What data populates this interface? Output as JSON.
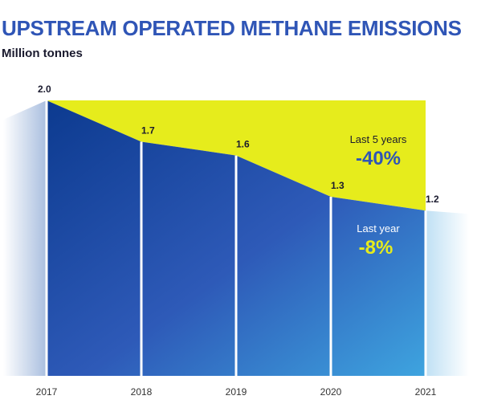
{
  "title": "UPSTREAM OPERATED METHANE EMISSIONS",
  "subtitle": "Million tonnes",
  "colors": {
    "title": "#2f55b6",
    "highlight": "#e6ec1c",
    "area_dark": "#0c3a8f",
    "area_mid": "#2e5ab8",
    "area_light": "#3ea4df",
    "fade": "#dde6f3"
  },
  "chart_data": {
    "type": "area",
    "categories": [
      "2017",
      "2018",
      "2019",
      "2020",
      "2021"
    ],
    "values": [
      2.0,
      1.7,
      1.6,
      1.3,
      1.2
    ],
    "value_labels": [
      "2.0",
      "1.7",
      "1.6",
      "1.3",
      "1.2"
    ],
    "ylim": [
      0,
      2.0
    ],
    "grid": false,
    "annotations": [
      {
        "label": "Last 5 years",
        "value": "-40%"
      },
      {
        "label": "Last year",
        "value": "-8%"
      }
    ]
  }
}
